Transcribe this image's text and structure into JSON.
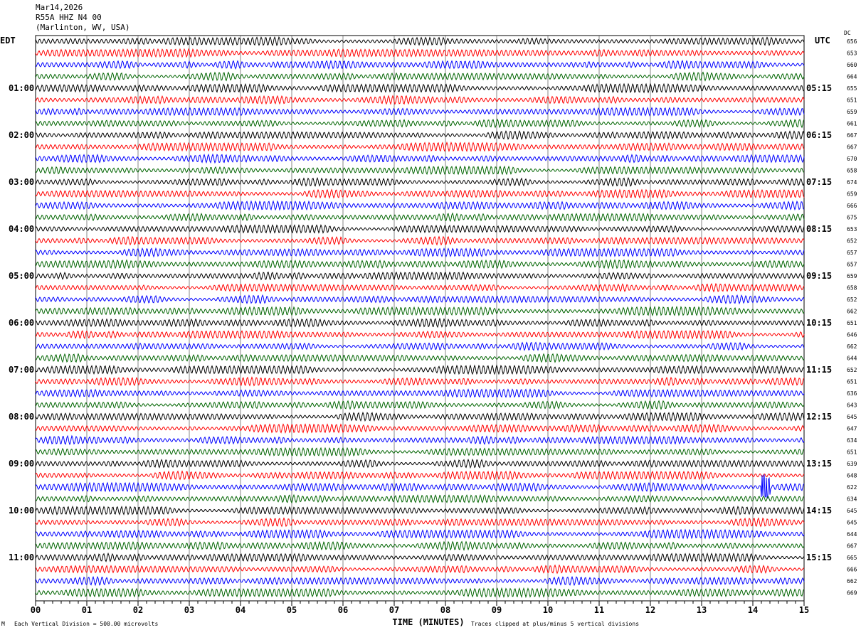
{
  "header": {
    "date": "Mar14,2026",
    "station": "R55A HHZ N4 00",
    "location": "(Marlinton, WV, USA)"
  },
  "footer": {
    "scale_note": "Each Vertical Division =  500.00 microvolts",
    "clip_note": "Traces clipped at plus/minus 5 vertical divisions",
    "corner_mark": "M"
  },
  "chart_data": {
    "type": "line",
    "title": "R55A HHZ N4 00",
    "xlabel": "TIME (MINUTES)",
    "xlim": [
      0,
      15
    ],
    "x_ticks": [
      "00",
      "01",
      "02",
      "03",
      "04",
      "05",
      "06",
      "07",
      "08",
      "09",
      "10",
      "11",
      "12",
      "13",
      "14",
      "15"
    ],
    "left_axis_title": "EDT",
    "right_axis_title": "UTC",
    "dc_title": "DC",
    "left_labels": [
      "01:00",
      "02:00",
      "03:00",
      "04:00",
      "05:00",
      "06:00",
      "07:00",
      "08:00",
      "09:00",
      "10:00",
      "11:00"
    ],
    "right_labels": [
      "05:15",
      "06:15",
      "07:15",
      "08:15",
      "09:15",
      "10:15",
      "11:15",
      "12:15",
      "13:15",
      "14:15",
      "15:15"
    ],
    "minutes_per_trace": 15,
    "trace_colors": [
      "#000000",
      "#ff0000",
      "#0000ff",
      "#006400"
    ],
    "dc_values": [
      656,
      653,
      660,
      664,
      655,
      651,
      659,
      661,
      667,
      667,
      670,
      658,
      674,
      659,
      666,
      675,
      653,
      652,
      657,
      657,
      659,
      658,
      652,
      662,
      651,
      646,
      662,
      644,
      652,
      651,
      636,
      643,
      645,
      647,
      634,
      651,
      639,
      648,
      622,
      634,
      645,
      645,
      644,
      667,
      665,
      666,
      662,
      669
    ],
    "event": {
      "trace_index": 38,
      "minute": 14.25,
      "note": "clipped burst"
    }
  }
}
